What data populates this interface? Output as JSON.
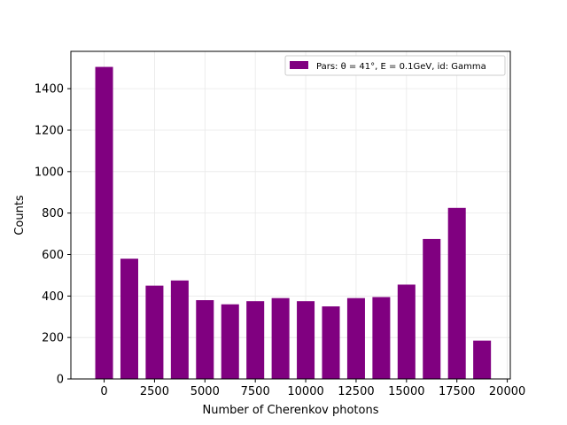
{
  "chart_data": {
    "type": "bar",
    "xlabel": "Number of Cherenkov photons",
    "ylabel": "Counts",
    "xlim": [
      -1650,
      20150
    ],
    "ylim": [
      0,
      1580
    ],
    "xticks": [
      0,
      2500,
      5000,
      7500,
      10000,
      12500,
      15000,
      17500,
      20000
    ],
    "xtick_labels": [
      "0",
      "2500",
      "5000",
      "7500",
      "10000",
      "12500",
      "15000",
      "17500",
      "20000"
    ],
    "yticks": [
      0,
      200,
      400,
      600,
      800,
      1000,
      1200,
      1400
    ],
    "ytick_labels": [
      "0",
      "200",
      "400",
      "600",
      "800",
      "1000",
      "1200",
      "1400"
    ],
    "grid": true,
    "legend_position": "top-right",
    "series": [
      {
        "name": "Pars: θ = 41°, E = 0.1GeV, id: Gamma",
        "color": "#800080",
        "bin_width": 880,
        "x": [
          0,
          1250,
          2500,
          3750,
          5000,
          6250,
          7500,
          8750,
          10000,
          11250,
          12500,
          13750,
          15000,
          16250,
          17500,
          18750
        ],
        "values": [
          1505,
          580,
          450,
          475,
          380,
          360,
          375,
          390,
          375,
          350,
          390,
          395,
          455,
          675,
          825,
          185
        ]
      }
    ]
  }
}
